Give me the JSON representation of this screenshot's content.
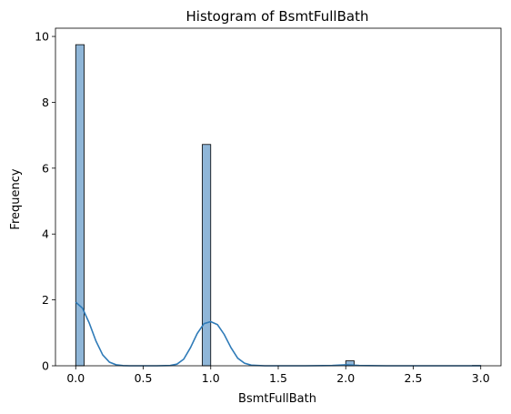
{
  "chart_data": {
    "type": "bar",
    "title": "Histogram of BsmtFullBath",
    "xlabel": "BsmtFullBath",
    "ylabel": "Frequency",
    "xlim": [
      -0.15,
      3.15
    ],
    "ylim": [
      0,
      10.25
    ],
    "x_ticks": [
      0.0,
      0.5,
      1.0,
      1.5,
      2.0,
      2.5,
      3.0
    ],
    "x_tick_labels": [
      "0.0",
      "0.5",
      "1.0",
      "1.5",
      "2.0",
      "2.5",
      "3.0"
    ],
    "y_ticks": [
      0,
      2,
      4,
      6,
      8,
      10
    ],
    "y_tick_labels": [
      "0",
      "2",
      "4",
      "6",
      "8",
      "10"
    ],
    "bin_width": 0.0625,
    "bins": [
      {
        "start": 0.0,
        "end": 0.0625,
        "value": 9.75
      },
      {
        "start": 0.9375,
        "end": 1.0,
        "value": 6.72
      },
      {
        "start": 2.0,
        "end": 2.0625,
        "value": 0.15
      },
      {
        "start": 2.9375,
        "end": 3.0,
        "value": 0.01
      }
    ],
    "kde": {
      "x": [
        0.0,
        0.05,
        0.1,
        0.15,
        0.2,
        0.25,
        0.3,
        0.35,
        0.4,
        0.5,
        0.6,
        0.7,
        0.75,
        0.8,
        0.85,
        0.9,
        0.95,
        1.0,
        1.05,
        1.1,
        1.15,
        1.2,
        1.25,
        1.3,
        1.4,
        1.5,
        1.7,
        1.9,
        2.0,
        2.1,
        2.3,
        2.6,
        3.0
      ],
      "y": [
        1.93,
        1.75,
        1.3,
        0.75,
        0.33,
        0.11,
        0.03,
        0.005,
        0.0,
        0.0,
        0.0,
        0.01,
        0.05,
        0.2,
        0.55,
        0.98,
        1.28,
        1.34,
        1.25,
        0.95,
        0.55,
        0.23,
        0.08,
        0.02,
        0.0,
        0.0,
        0.0,
        0.01,
        0.03,
        0.01,
        0.0,
        0.0,
        0.0
      ]
    },
    "colors": {
      "bar_fill": "#8fb6d8",
      "bar_edge": "#000000",
      "kde_line": "#2f7bb8"
    },
    "grid": false,
    "legend": "none"
  }
}
